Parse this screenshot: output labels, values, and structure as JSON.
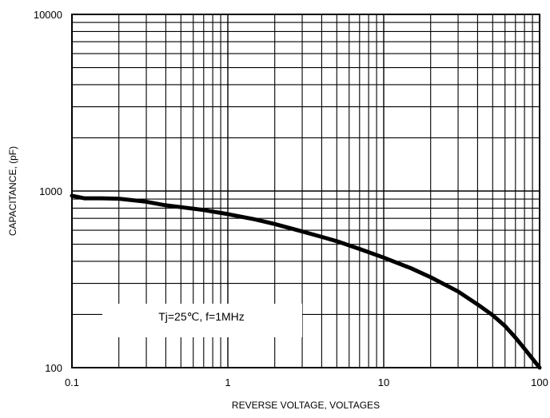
{
  "chart_data": {
    "type": "line",
    "xscale": "log",
    "yscale": "log",
    "xlim": [
      0.1,
      100
    ],
    "ylim": [
      100,
      10000
    ],
    "grid": true,
    "xlabel": "REVERSE VOLTAGE, VOLTAGES",
    "ylabel": "CAPACITANCE, (pF)",
    "xticks": [
      "0.1",
      "1",
      "10",
      "100"
    ],
    "yticks": [
      "100",
      "1000",
      "10000"
    ],
    "annotation": "Tj=25℃, f=1MHz",
    "series": [
      {
        "x": [
          0.1,
          0.12,
          0.15,
          0.2,
          0.3,
          0.4,
          0.5,
          0.7,
          1,
          1.5,
          2,
          3,
          4,
          5,
          7,
          10,
          15,
          20,
          30,
          40,
          50,
          60,
          70,
          80,
          100
        ],
        "values": [
          940,
          910,
          910,
          905,
          870,
          830,
          810,
          780,
          740,
          690,
          650,
          590,
          550,
          520,
          470,
          420,
          365,
          325,
          270,
          228,
          198,
          172,
          148,
          128,
          100
        ]
      }
    ]
  }
}
